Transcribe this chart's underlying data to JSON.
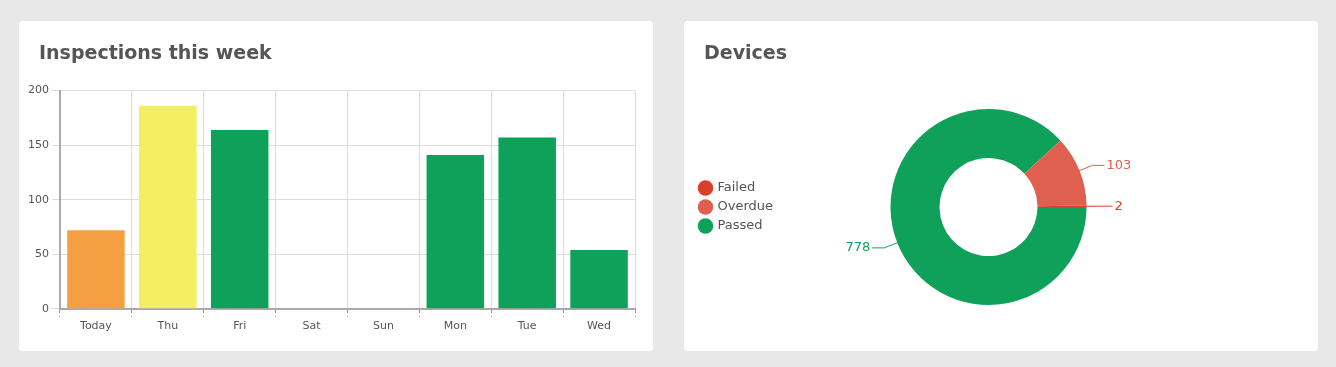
{
  "chart_data": [
    {
      "type": "bar",
      "title": "Inspections this week",
      "categories": [
        "Today",
        "Thu",
        "Fri",
        "Sat",
        "Sun",
        "Mon",
        "Tue",
        "Wed"
      ],
      "values": [
        72,
        186,
        164,
        0,
        0,
        141,
        157,
        54
      ],
      "colors": [
        "#f4a042",
        "#f3ee62",
        "#0fa05a",
        "#0fa05a",
        "#0fa05a",
        "#0fa05a",
        "#0fa05a",
        "#0fa05a"
      ],
      "ylim": [
        0,
        200
      ],
      "yticks": [
        0,
        50,
        100,
        150,
        200
      ],
      "grid": true,
      "legend": false
    },
    {
      "type": "donut",
      "title": "Devices",
      "categories": [
        "Failed",
        "Overdue",
        "Passed"
      ],
      "values": [
        2,
        103,
        778
      ],
      "colors": [
        "#d9402b",
        "#e06050",
        "#0fa05a"
      ],
      "data_labels": true,
      "legend": "left"
    }
  ]
}
